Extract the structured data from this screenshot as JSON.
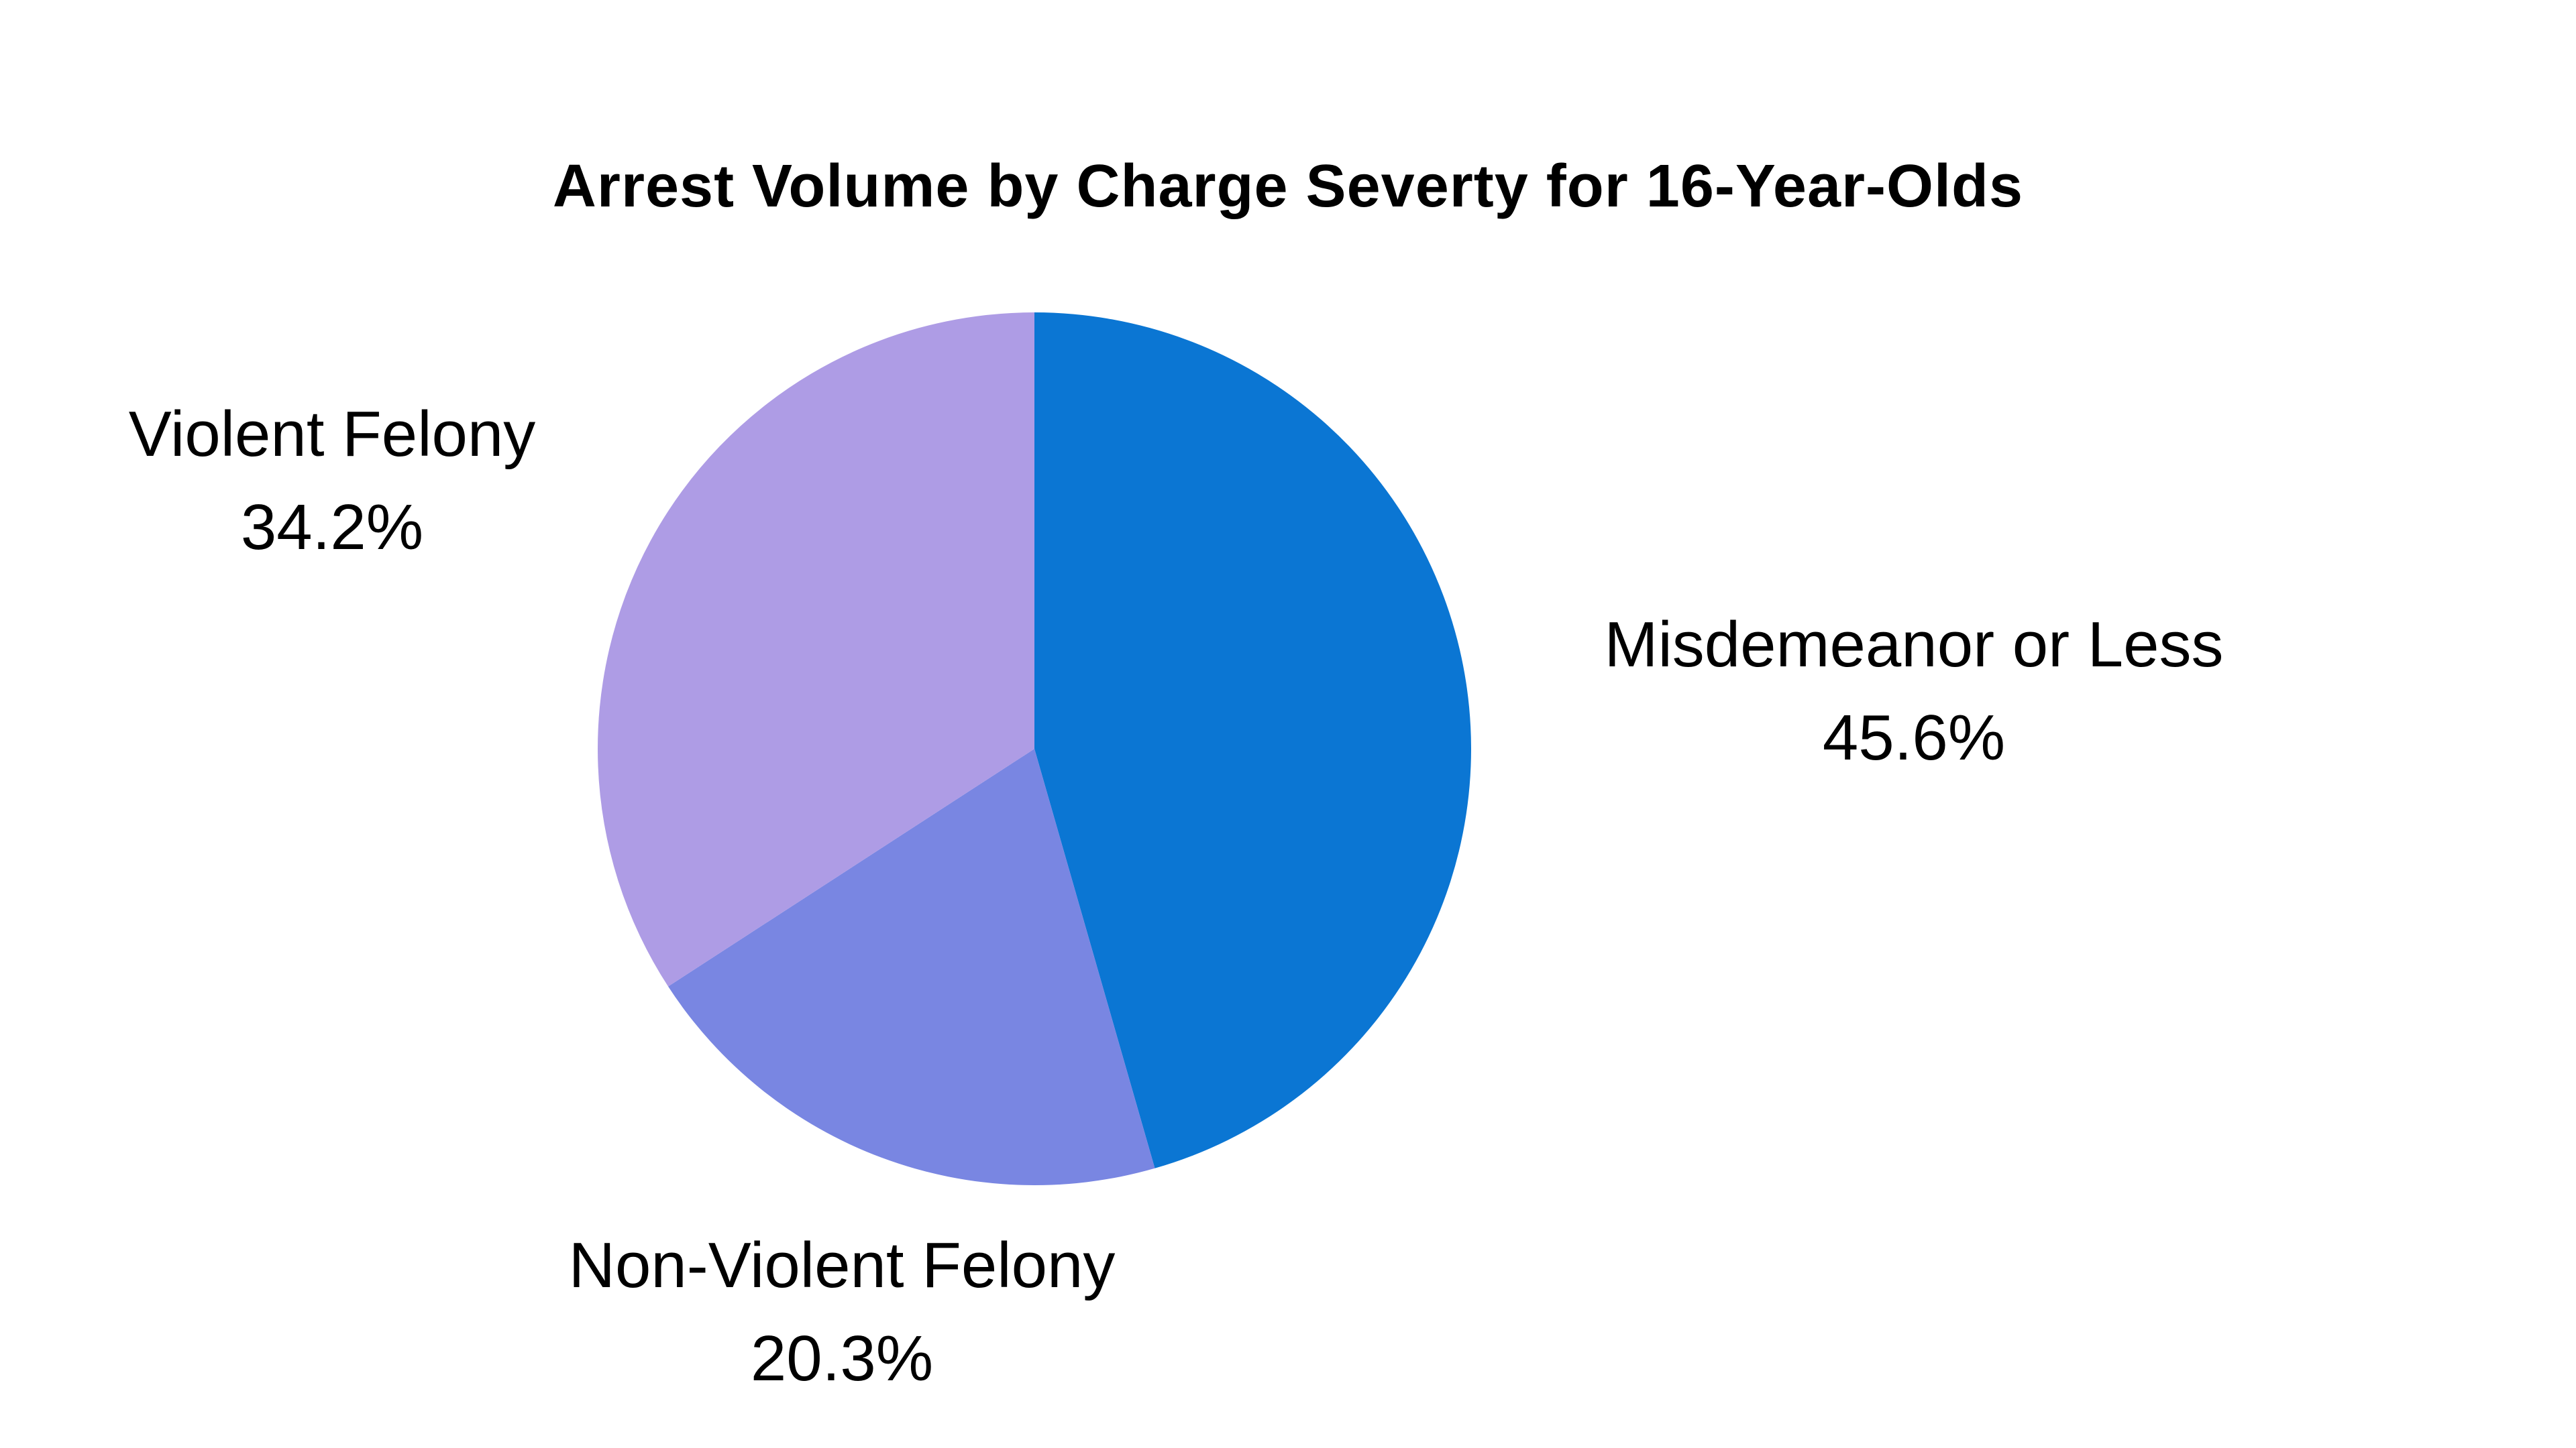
{
  "title": "Arrest Volume by Charge Severty for 16-Year-Olds",
  "colors": {
    "background": "#FFFFFF",
    "text": "#000000",
    "misdemeanor_blue": "#0B76D3",
    "nonviolent_periwinkle": "#7986E2",
    "violent_light_purple": "#AE9CE5"
  },
  "chart_data": {
    "type": "pie",
    "title": "Arrest Volume by Charge Severty for 16-Year-Olds",
    "legend_position": "none",
    "labels_position": "outside",
    "start_angle_deg": 0,
    "direction": "clockwise",
    "slices": [
      {
        "label": "Misdemeanor or Less",
        "pct_label": "45.6%",
        "value": 45.6,
        "color": "#0B76D3"
      },
      {
        "label": "Non-Violent Felony",
        "pct_label": "20.3%",
        "value": 20.3,
        "color": "#7986E2"
      },
      {
        "label": "Violent Felony",
        "pct_label": "34.2%",
        "value": 34.2,
        "color": "#AE9CE5"
      }
    ]
  }
}
